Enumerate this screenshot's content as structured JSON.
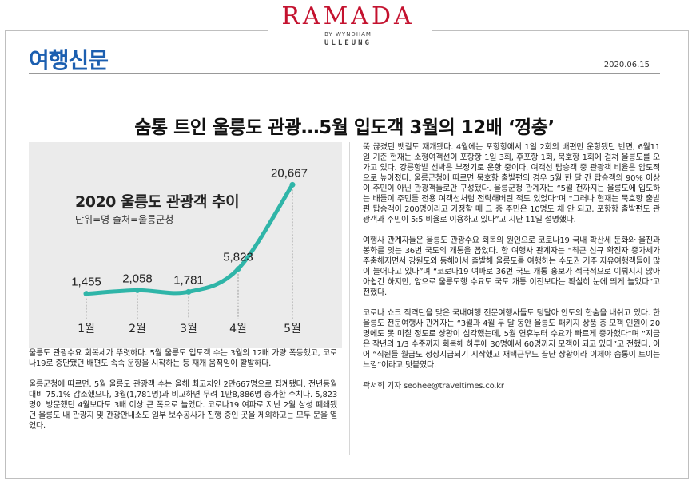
{
  "brand": {
    "name": "RAMADA",
    "sub": "BY WYNDHAM",
    "location": "ULLEUNG"
  },
  "masthead": "여행신문",
  "date": "2020.06.15",
  "headline": "숨통 트인 울릉도 관광…5월 입도객 3월의 12배 ‘껑충’",
  "chart_data": {
    "type": "line",
    "title": "2020 울릉도 관광객 추이",
    "subtitle": "단위=명 출처=울릉군청",
    "categories": [
      "1월",
      "2월",
      "3월",
      "4월",
      "5월"
    ],
    "values": [
      1455,
      2058,
      1781,
      5823,
      20667
    ],
    "value_labels": [
      "1,455",
      "2,058",
      "1,781",
      "5,823",
      "20,667"
    ],
    "line_color": "#2fb5a8"
  },
  "body_left": [
    "울릉도 관광수요 회복세가 뚜렷하다. 5월 울릉도 입도객 수는 3월의 12배 가량 폭등했고, 코로나19로 중단됐던 배편도 속속 운항을 시작하는 등 재개 움직임이 활발하다.",
    "울릉군청에 따르면, 5월 울릉도 관광객 수는 올해 최고치인 2만667명으로 집계됐다. 전년동월대비 75.1% 감소했으나, 3월(1,781명)과 비교하면 무려 1만8,886명 증가한 수치다. 5,823명이 방문했던 4월보다도 3배 이상 큰 폭으로 늘었다. 코로나19 여파로 지난 2월 삼성 폐쇄됐던 울릉도 내 관광지 및 관광안내소도 일부 보수공사가 진행 중인 곳을 제외하고는 모두 문을 열었다."
  ],
  "body_right": [
    "뚝 끊겼던 뱃길도 재개됐다. 4월에는 포항항에서 1일 2회의 배편만 운항됐던 반면, 6월11일 기준 현재는 소형여객선이 포항항 1일 3회, 후포항 1회, 묵호항 1회에 걸쳐 울릉도를 오가고 있다. 강릉항발 선박은 부정기로 운항 중이다. 여객선 탑승객 중 관광객 비율은 압도적으로 높아졌다. 울릉군청에 따르면 묵호항 출발편의 경우 5월 한 달 간 탑승객의 90% 이상이 주민이 아닌 관광객들로만 구성됐다. 울릉군청 관계자는 “5월 전까지는 울릉도에 입도하는 배들이 주민들 전용 여객선처럼 전락해버린 적도 있었다”며 “그러나 현재는 묵호항 출발편 탑승객이 200명이라고 가정할 때 그 중 주민은 10명도 채 안 되고, 포항항 출발편도 관광객과 주민이 5:5 비율로 이용하고 있다”고 지난 11일 설명했다.",
    "여행사 관계자들은 울릉도 관광수요 회복의 원인으로 코로나19 국내 확산세 둔화와 울진과 봉화를 잇는 36번 국도의 개통을 꼽았다. 한 여행사 관계자는 “최근 신규 확진자 증가세가 주춤해지면서 강원도와 동해에서 출발해 울릉도를 여행하는 수도권 거주 자유여행객들이 많이 늘어나고 있다”며 “코로나19 여파로 36번 국도 개통 홍보가 적극적으로 이뤄지지 않아 아쉽긴 하지만, 앞으로 울릉도행 수요도 국도 개통 이전보다는 확실히 눈에 띄게 늘었다”고 전했다.",
    "코로나 쇼크 직격탄을 맞은 국내여행 전문여행사들도 덩달아 안도의 한숨을 내쉬고 있다. 한 울릉도 전문여행사 관계자는 “3월과 4월 두 달 동안 울릉도 패키지 상품 총 모객 인원이 20명에도 못 미칠 정도로 상황이 심각했는데, 5월 연휴부터 수요가 빠르게 증가했다”며 “지금은 작년의 1/3 수준까지 회복해 하루에 30명에서 60명까지 모객이 되고 있다”고 전했다. 이어 “직원들 월급도 정상지급되기 시작했고 재택근무도 끝난 상황이라 이제야 숨통이 트이는 느낌”이라고 덧붙였다."
  ],
  "byline": "곽서희 기자 seohee@traveltimes.co.kr"
}
